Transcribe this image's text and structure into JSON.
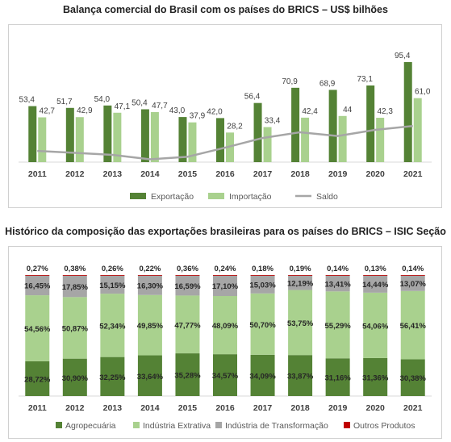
{
  "chart_data": [
    {
      "type": "bar",
      "title": "Balança comercial do Brasil com os países do BRICS – US$ bilhões",
      "categories": [
        "2011",
        "2012",
        "2013",
        "2014",
        "2015",
        "2016",
        "2017",
        "2018",
        "2019",
        "2020",
        "2021"
      ],
      "series": [
        {
          "name": "Exportação",
          "kind": "bar",
          "values": [
            53.4,
            51.7,
            54.0,
            50.4,
            43.0,
            42.0,
            56.4,
            70.9,
            68.9,
            73.1,
            95.4
          ],
          "labels": [
            "53,4",
            "51,7",
            "54,0",
            "50,4",
            "43,0",
            "42,0",
            "56,4",
            "70,9",
            "68,9",
            "73,1",
            "95,4"
          ]
        },
        {
          "name": "Importação",
          "kind": "bar",
          "values": [
            42.7,
            42.9,
            47.1,
            47.7,
            37.9,
            28.2,
            33.4,
            42.4,
            44.0,
            42.3,
            61.0
          ],
          "labels": [
            "42,7",
            "42,9",
            "47,1",
            "47,7",
            "37,9",
            "28,2",
            "33,4",
            "42,4",
            "44",
            "42,3",
            "61,0"
          ]
        },
        {
          "name": "Saldo",
          "kind": "line",
          "values": [
            10.7,
            8.8,
            6.9,
            2.7,
            5.1,
            13.8,
            23.0,
            28.5,
            24.9,
            30.8,
            34.4
          ]
        }
      ],
      "ylim": [
        0,
        100
      ],
      "legend_position": "bottom",
      "colors": {
        "Exportação": "#548235",
        "Importação": "#a9d18e",
        "Saldo": "#a6a6a6"
      }
    },
    {
      "type": "bar",
      "stacked": "percent",
      "title": "Histórico da composição das exportações brasileiras para os países do BRICS – ISIC Seção",
      "categories": [
        "2011",
        "2012",
        "2013",
        "2014",
        "2015",
        "2016",
        "2017",
        "2018",
        "2019",
        "2020",
        "2021"
      ],
      "series": [
        {
          "name": "Agropecuária",
          "values": [
            28.72,
            30.9,
            32.25,
            33.64,
            35.28,
            34.57,
            34.09,
            33.87,
            31.16,
            31.36,
            30.38
          ],
          "labels": [
            "28,72%",
            "30,90%",
            "32,25%",
            "33,64%",
            "35,28%",
            "34,57%",
            "34,09%",
            "33,87%",
            "31,16%",
            "31,36%",
            "30,38%"
          ]
        },
        {
          "name": "Indústria Extrativa",
          "values": [
            54.56,
            50.87,
            52.34,
            49.85,
            47.77,
            48.09,
            50.7,
            53.75,
            55.29,
            54.06,
            56.41
          ],
          "labels": [
            "54,56%",
            "50,87%",
            "52,34%",
            "49,85%",
            "47,77%",
            "48,09%",
            "50,70%",
            "53,75%",
            "55,29%",
            "54,06%",
            "56,41%"
          ]
        },
        {
          "name": "Indústria de Transformação",
          "values": [
            16.45,
            17.85,
            15.15,
            16.3,
            16.59,
            17.1,
            15.03,
            12.19,
            13.41,
            14.44,
            13.07
          ],
          "labels": [
            "16,45%",
            "17,85%",
            "15,15%",
            "16,30%",
            "16,59%",
            "17,10%",
            "15,03%",
            "12,19%",
            "13,41%",
            "14,44%",
            "13,07%"
          ]
        },
        {
          "name": "Outros Produtos",
          "values": [
            0.27,
            0.38,
            0.26,
            0.22,
            0.36,
            0.24,
            0.18,
            0.19,
            0.14,
            0.13,
            0.14
          ],
          "labels": [
            "0,27%",
            "0,38%",
            "0,26%",
            "0,22%",
            "0,36%",
            "0,24%",
            "0,18%",
            "0,19%",
            "0,14%",
            "0,13%",
            "0,14%"
          ]
        }
      ],
      "ylim": [
        0,
        100
      ],
      "legend_position": "bottom",
      "colors": {
        "Agropecuária": "#548235",
        "Indústria Extrativa": "#a9d18e",
        "Indústria de Transformação": "#a6a6a6",
        "Outros Produtos": "#c00000"
      }
    }
  ]
}
